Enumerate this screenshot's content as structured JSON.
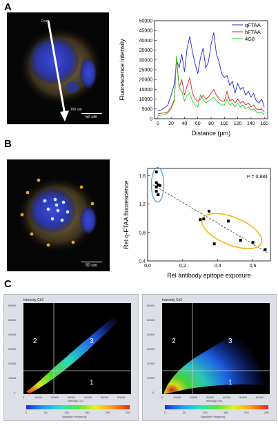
{
  "panels": {
    "a": {
      "label": "A",
      "micro": {
        "arrow_start": "0 um",
        "arrow_end": "160 um",
        "scale": "50 um"
      }
    },
    "b": {
      "label": "B",
      "micro": {
        "scale": "50 um"
      }
    },
    "c": {
      "label": "C",
      "left": {
        "title": "Intensity Ch2",
        "gates": [
          "2",
          "3",
          "1"
        ],
        "yticks": [
          "60000",
          "50000",
          "40000",
          "30000",
          "20000",
          "10000",
          "0"
        ],
        "xticks": [
          "0",
          "10000",
          "20000",
          "30000",
          "40000",
          "50000",
          "60000"
        ],
        "xlabel": "Intensity Ch1",
        "cbar_ticks": [
          "0",
          "50",
          "100",
          "150",
          "200",
          "250"
        ],
        "cbar_label": "Absolute Frequency"
      },
      "right": {
        "title": "Intensity Ch2",
        "gates": [
          "2",
          "3",
          "1"
        ],
        "yticks": [
          "60000",
          "50000",
          "40000",
          "30000",
          "20000",
          "10000",
          "0"
        ],
        "xticks": [
          "0",
          "10000",
          "20000",
          "30000",
          "40000",
          "50000",
          "60000"
        ],
        "xlabel": "Intensity Ch1",
        "cbar_ticks": [
          "0",
          "50",
          "100",
          "150",
          "200",
          "250"
        ],
        "cbar_label": "Absolute Frequency"
      }
    }
  },
  "colors": {
    "qFTAA": "#2222dd",
    "hFTAA": "#e02020",
    "4G8": "#22cc22",
    "ellipse_blue": "#5aa0d8",
    "ellipse_orange": "#f0b400"
  },
  "chart_data": [
    {
      "type": "line",
      "title": "",
      "xlabel": "Distance (µm)",
      "ylabel": "Fluorescence intensity",
      "xlim": [
        -5,
        165
      ],
      "ylim": [
        0,
        50000
      ],
      "xticks": [
        0,
        20,
        40,
        60,
        80,
        100,
        120,
        140,
        160
      ],
      "yticks": [
        0,
        5000,
        10000,
        15000,
        20000,
        25000,
        30000,
        35000,
        40000,
        45000,
        50000
      ],
      "legend_position": "top-right",
      "x": [
        0,
        5,
        10,
        15,
        20,
        25,
        28,
        32,
        36,
        40,
        44,
        48,
        52,
        56,
        60,
        64,
        68,
        72,
        76,
        80,
        84,
        88,
        92,
        96,
        100,
        104,
        108,
        112,
        116,
        120,
        124,
        128,
        132,
        136,
        140,
        144,
        148,
        152,
        156,
        160
      ],
      "series": [
        {
          "name": "qFTAA",
          "values": [
            4000,
            4500,
            5500,
            7000,
            12000,
            18000,
            30000,
            26000,
            33000,
            24000,
            36000,
            42000,
            34000,
            28000,
            23000,
            31000,
            36000,
            26000,
            29000,
            38000,
            44000,
            33000,
            29000,
            23000,
            21000,
            22000,
            17000,
            19000,
            13000,
            18000,
            15000,
            16000,
            12000,
            14000,
            11000,
            13000,
            9000,
            8000,
            10000,
            6000
          ]
        },
        {
          "name": "hFTAA",
          "values": [
            2500,
            2800,
            3000,
            3500,
            6000,
            10000,
            31000,
            16000,
            20000,
            12000,
            17000,
            21000,
            13000,
            10000,
            9000,
            10000,
            12000,
            10000,
            11000,
            13000,
            15000,
            12000,
            10000,
            9000,
            9000,
            14000,
            9000,
            10000,
            8000,
            10000,
            8000,
            9000,
            7000,
            8000,
            6000,
            7000,
            5000,
            4500,
            5000,
            3500
          ]
        },
        {
          "name": "4G8",
          "values": [
            1500,
            1800,
            2200,
            3000,
            5000,
            9000,
            32000,
            16000,
            14000,
            9000,
            12000,
            13000,
            9000,
            7000,
            6000,
            12000,
            10000,
            8000,
            9000,
            10000,
            11000,
            9000,
            8000,
            7000,
            7000,
            10000,
            7000,
            8000,
            6000,
            8000,
            6000,
            7000,
            5000,
            6000,
            4500,
            5000,
            3500,
            3000,
            3500,
            2000
          ]
        }
      ]
    },
    {
      "type": "scatter",
      "title": "",
      "xlabel": "Rel antibody epitope exposure",
      "ylabel": "Rel q-FTAA fluorescence",
      "xlim": [
        0,
        0.7
      ],
      "ylim": [
        0.4,
        1.7
      ],
      "xticks": [
        "0,0",
        "0,2",
        "0,4",
        "0,6"
      ],
      "yticks": [
        "0,4",
        "0,8",
        "1,2",
        "1,6"
      ],
      "annotation": "r² = 0,884",
      "points": [
        [
          0.05,
          1.65
        ],
        [
          0.05,
          1.5
        ],
        [
          0.06,
          1.47
        ],
        [
          0.05,
          1.44
        ],
        [
          0.07,
          1.46
        ],
        [
          0.05,
          1.38
        ],
        [
          0.06,
          1.33
        ],
        [
          0.3,
          0.98
        ],
        [
          0.32,
          0.99
        ],
        [
          0.35,
          1.1
        ],
        [
          0.38,
          0.64
        ],
        [
          0.46,
          0.96
        ],
        [
          0.53,
          0.69
        ],
        [
          0.6,
          0.66
        ],
        [
          0.67,
          0.56
        ]
      ],
      "fit_line": [
        [
          0.03,
          1.47
        ],
        [
          0.68,
          0.52
        ]
      ]
    }
  ]
}
